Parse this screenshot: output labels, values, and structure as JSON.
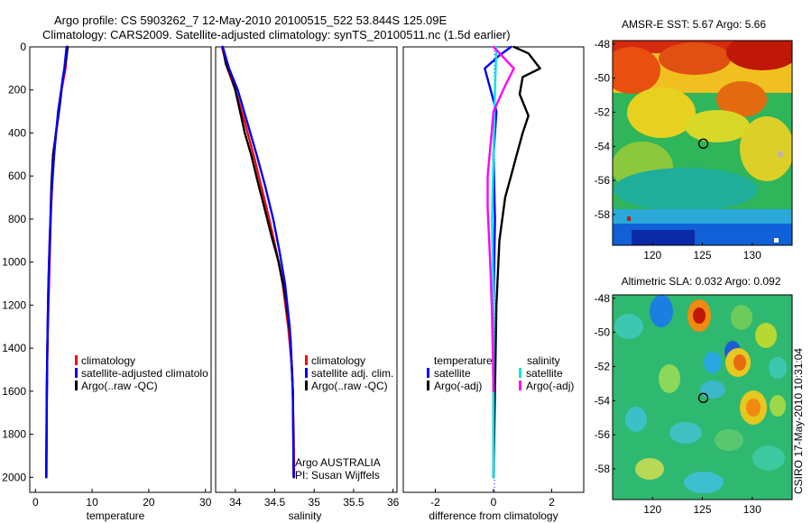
{
  "header": {
    "line1": "Argo profile: CS 5903262_7 12-May-2010 20100515_522 53.844S 125.09E",
    "line2": "Climatology: CARS2009. Satellite-adjusted climatology: synTS_20100511.nc (1.5d earlier)"
  },
  "side_label": "CSIRO 17-May-2010 10:31:04",
  "colors": {
    "climatology": "#ff0000",
    "satellite": "#0000ff",
    "argo": "#000000",
    "sat_diff": "#00e5e5",
    "argo_adj": "#ff00ff"
  },
  "chart_data": [
    {
      "id": "temperature",
      "type": "line",
      "xlabel": "temperature",
      "ylabel": "",
      "xlim": [
        -1,
        31
      ],
      "ylim": [
        2070,
        0
      ],
      "xticks": [
        "0",
        "10",
        "20",
        "30"
      ],
      "yticks": [
        "0",
        "200",
        "400",
        "600",
        "800",
        "1000",
        "1200",
        "1400",
        "1600",
        "1800",
        "2000"
      ],
      "legend": [
        "climatology",
        "satellite-adjusted climatolo",
        "Argo(..raw -QC)"
      ],
      "series": [
        {
          "name": "climatology",
          "color": "#ff0000",
          "x": [
            5.6,
            5.3,
            4.6,
            3.6,
            3.0,
            2.7,
            2.5,
            2.3,
            2.1,
            2.0,
            1.95,
            1.9
          ],
          "y": [
            0,
            100,
            200,
            400,
            600,
            800,
            1000,
            1200,
            1400,
            1600,
            1800,
            2000
          ]
        },
        {
          "name": "Argo(..raw -QC)",
          "color": "#000000",
          "x": [
            5.7,
            5.4,
            4.8,
            4.4,
            4.0,
            3.1,
            2.8,
            2.6,
            2.3,
            2.1,
            2.0,
            1.95,
            1.9
          ],
          "y": [
            0,
            60,
            150,
            250,
            330,
            500,
            650,
            850,
            1100,
            1400,
            1650,
            1850,
            2000
          ]
        },
        {
          "name": "satellite",
          "color": "#0000ff",
          "x": [
            5.5,
            5.1,
            4.0,
            3.3,
            2.8,
            2.5,
            2.3,
            2.15,
            2.05,
            2.0,
            1.95
          ],
          "y": [
            0,
            100,
            300,
            500,
            700,
            900,
            1100,
            1300,
            1500,
            1700,
            2000
          ]
        }
      ]
    },
    {
      "id": "salinity",
      "type": "line",
      "xlabel": "salinity",
      "ylabel": "",
      "xlim": [
        33.75,
        36.05
      ],
      "ylim": [
        2070,
        0
      ],
      "xticks": [
        "34",
        "34.5",
        "35",
        "35.5",
        "36"
      ],
      "legend": [
        "climatology",
        "satellite adj. clim.",
        "Argo(..raw -QC)"
      ],
      "annotations": [
        "Argo AUSTRALIA",
        "PI: Susan Wijffels"
      ],
      "series": [
        {
          "name": "climatology",
          "color": "#ff0000",
          "x": [
            33.83,
            33.9,
            34.0,
            34.12,
            34.23,
            34.33,
            34.43,
            34.52,
            34.6,
            34.67,
            34.72,
            34.74,
            34.745
          ],
          "y": [
            0,
            100,
            200,
            350,
            500,
            650,
            800,
            950,
            1100,
            1300,
            1500,
            1800,
            2000
          ]
        },
        {
          "name": "Argo(..raw -QC)",
          "color": "#000000",
          "x": [
            33.84,
            33.88,
            33.95,
            34.0,
            34.06,
            34.12,
            34.2,
            34.28,
            34.37,
            34.46,
            34.55,
            34.63,
            34.7,
            34.73,
            34.74
          ],
          "y": [
            0,
            80,
            140,
            200,
            300,
            400,
            500,
            620,
            750,
            880,
            1000,
            1150,
            1350,
            1600,
            2000
          ]
        },
        {
          "name": "satellite",
          "color": "#0000ff",
          "x": [
            33.84,
            33.92,
            34.03,
            34.15,
            34.27,
            34.38,
            34.48,
            34.56,
            34.63,
            34.69,
            34.73,
            34.74
          ],
          "y": [
            0,
            100,
            200,
            350,
            500,
            650,
            800,
            950,
            1100,
            1300,
            1600,
            2000
          ]
        }
      ]
    },
    {
      "id": "difference",
      "type": "line",
      "xlabel": "difference from climatology",
      "ylabel": "",
      "xlim": [
        -3.1,
        3.1
      ],
      "ylim": [
        2070,
        0
      ],
      "xticks": [
        "-2",
        "0",
        "2"
      ],
      "legend_temperature": {
        "title": "temperature",
        "items": [
          "satellite",
          "Argo(-adj)"
        ]
      },
      "legend_salinity": {
        "title": "salinity",
        "items": [
          "satellite",
          "Argo(-adj)"
        ]
      },
      "series": [
        {
          "name": "temperature satellite",
          "color": "#0000ff",
          "x": [
            0.6,
            0.2,
            -0.3,
            -0.1,
            0.1,
            0.0,
            0.05,
            0.0,
            0.0,
            0.0
          ],
          "y": [
            0,
            40,
            100,
            200,
            300,
            500,
            800,
            1200,
            1600,
            2000
          ]
        },
        {
          "name": "temperature Argo(-adj)",
          "color": "#000000",
          "x": [
            0.7,
            1.2,
            1.6,
            1.0,
            0.9,
            1.2,
            1.0,
            0.8,
            0.6,
            0.4,
            0.2,
            0.1,
            0.05,
            0.0
          ],
          "y": [
            0,
            30,
            100,
            140,
            220,
            320,
            400,
            500,
            600,
            700,
            900,
            1200,
            1600,
            2000
          ]
        },
        {
          "name": "salinity satellite",
          "color": "#00e5e5",
          "x": [
            0.1,
            0.05,
            0.0,
            -0.05,
            0.0,
            0.0,
            0.0
          ],
          "y": [
            0,
            200,
            500,
            800,
            1200,
            1600,
            2000
          ]
        },
        {
          "name": "salinity Argo(-adj)",
          "color": "#ff00ff",
          "x": [
            0.0,
            0.7,
            0.4,
            0.0,
            -0.1,
            -0.2,
            -0.2,
            -0.15,
            -0.1,
            -0.05,
            0.0
          ],
          "y": [
            0,
            100,
            180,
            300,
            450,
            600,
            750,
            900,
            1050,
            1250,
            1600
          ]
        }
      ]
    },
    {
      "id": "sst_map",
      "type": "heatmap",
      "title": "AMSR-E SST: 5.67 Argo: 5.66",
      "xlim": [
        116,
        134
      ],
      "ylim": [
        -59.8,
        -47.8
      ],
      "xticks": [
        "120",
        "125",
        "130"
      ],
      "yticks": [
        "-48",
        "-50",
        "-52",
        "-54",
        "-56",
        "-58"
      ],
      "marker": {
        "lon": 125.09,
        "lat": -53.844
      }
    },
    {
      "id": "sla_map",
      "type": "heatmap",
      "title": "Altimetric SLA: 0.032 Argo: 0.092",
      "xlim": [
        116,
        134
      ],
      "ylim": [
        -59.8,
        -47.8
      ],
      "xticks": [
        "120",
        "125",
        "130"
      ],
      "yticks": [
        "-48",
        "-50",
        "-52",
        "-54",
        "-56",
        "-58"
      ],
      "marker": {
        "lon": 125.09,
        "lat": -53.844
      }
    }
  ]
}
